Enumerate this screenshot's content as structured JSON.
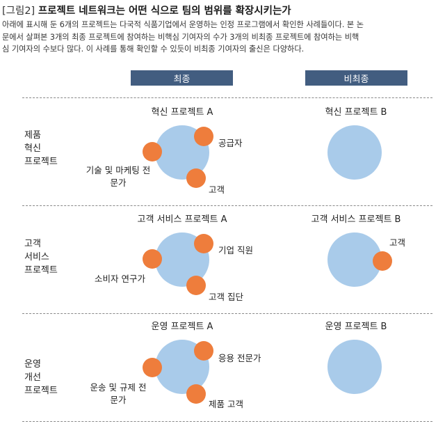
{
  "figure": {
    "tag": "[그림2]",
    "title": "프로젝트 네트워크는 어떤 식으로 팀의 범위를 확장시키는가"
  },
  "intro_lines": [
    "아래에 표시해 둔 6개의 프로젝트는 다국적 식품기업에서 운영하는 인정 프로그램에서 확인한 사례들이다. 본 논",
    "문에서 살펴본 3개의 최종 프로젝트에 참여하는 비핵심 기여자의 수가 3개의 비최종 프로젝트에 참여하는 비핵",
    "심 기여자의 수보다 많다. 이 사례를 통해 확인할 수 있듯이 비최종 기여자의 출신은 다양하다."
  ],
  "columns": [
    "최종",
    "비최종"
  ],
  "rows": [
    {
      "label": [
        "제품",
        "혁신",
        "프로젝트"
      ],
      "final": {
        "title": "혁신 프로젝트 A",
        "contributors": [
          "공급자",
          "기술 및 마케팅 전문가",
          "고객"
        ]
      },
      "nonfinal": {
        "title": "혁신 프로젝트 B",
        "contributors": []
      }
    },
    {
      "label": [
        "고객",
        "서비스",
        "프로젝트"
      ],
      "final": {
        "title": "고객 서비스 프로젝트 A",
        "contributors": [
          "기업 직원",
          "소비자 연구가",
          "고객 집단"
        ]
      },
      "nonfinal": {
        "title": "고객 서비스 프로젝트 B",
        "contributors": [
          "고객"
        ]
      }
    },
    {
      "label": [
        "운영",
        "개선",
        "프로젝트"
      ],
      "final": {
        "title": "운영 프로젝트 A",
        "contributors": [
          "응용 전문가",
          "운송 및 규제 전문가",
          "제품 고객"
        ]
      },
      "nonfinal": {
        "title": "운영 프로젝트 B",
        "contributors": []
      }
    }
  ],
  "colors": {
    "header_fill": "#425d80",
    "team_circle": "#a9cbea",
    "contributor_dot": "#ee7d3c"
  }
}
